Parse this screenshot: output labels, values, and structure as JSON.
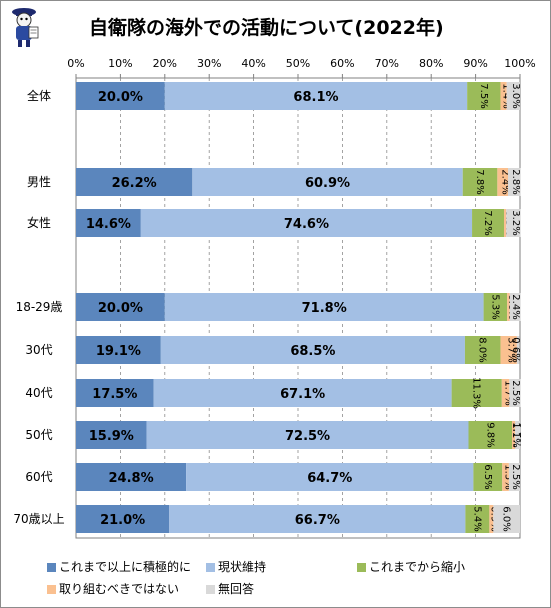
{
  "chart_data": {
    "type": "bar",
    "orientation": "horizontal",
    "stacked": true,
    "title": "自衛隊の海外での活動について(2022年)",
    "xlim": [
      0,
      100
    ],
    "x_tick_labels": [
      "0%",
      "10%",
      "20%",
      "30%",
      "40%",
      "50%",
      "60%",
      "70%",
      "80%",
      "90%",
      "100%"
    ],
    "grid": "vertical dashed",
    "legend_position": "bottom",
    "categories": [
      "全体",
      "男性",
      "女性",
      "18-29歳",
      "30代",
      "40代",
      "50代",
      "60代",
      "70歳以上"
    ],
    "series": [
      {
        "name": "これまで以上に積極的に",
        "color": "#5b86bd",
        "values": [
          20.0,
          26.2,
          14.6,
          20.0,
          19.1,
          17.5,
          15.9,
          24.8,
          21.0
        ],
        "labels": [
          "20.0%",
          "26.2%",
          "14.6%",
          "20.0%",
          "19.1%",
          "17.5%",
          "15.9%",
          "24.8%",
          "21.0%"
        ]
      },
      {
        "name": "現状維持",
        "color": "#a3bfe4",
        "values": [
          68.1,
          60.9,
          74.6,
          71.8,
          68.5,
          67.1,
          72.5,
          64.7,
          66.7
        ],
        "labels": [
          "68.1%",
          "60.9%",
          "74.6%",
          "71.8%",
          "68.5%",
          "67.1%",
          "72.5%",
          "64.7%",
          "66.7%"
        ]
      },
      {
        "name": "これまでから縮小",
        "color": "#9bbb59",
        "values": [
          7.5,
          7.8,
          7.2,
          5.3,
          8.0,
          11.3,
          9.8,
          6.5,
          5.4
        ],
        "labels": [
          "7.5%",
          "7.8%",
          "7.2%",
          "5.3%",
          "8.0%",
          "11.3%",
          "9.8%",
          "6.5%",
          "5.4%"
        ]
      },
      {
        "name": "取り組むべきではない",
        "color": "#fac090",
        "values": [
          1.4,
          2.4,
          0.5,
          0.6,
          3.7,
          1.7,
          0.7,
          1.5,
          0.9
        ],
        "labels": [
          "1.4%",
          "2.4%",
          "0.5%",
          "0.6%",
          "3.7%",
          "1.7%",
          "0.7%",
          "1.5%",
          "0.9%"
        ]
      },
      {
        "name": "無回答",
        "color": "#d9d9d9",
        "values": [
          3.0,
          2.8,
          3.2,
          2.4,
          0.6,
          2.5,
          1.1,
          2.5,
          6.0
        ],
        "labels": [
          "3.0%",
          "2.8%",
          "3.2%",
          "2.4%",
          "0.6%",
          "2.5%",
          "1.1%",
          "2.5%",
          "6.0%"
        ]
      }
    ]
  }
}
